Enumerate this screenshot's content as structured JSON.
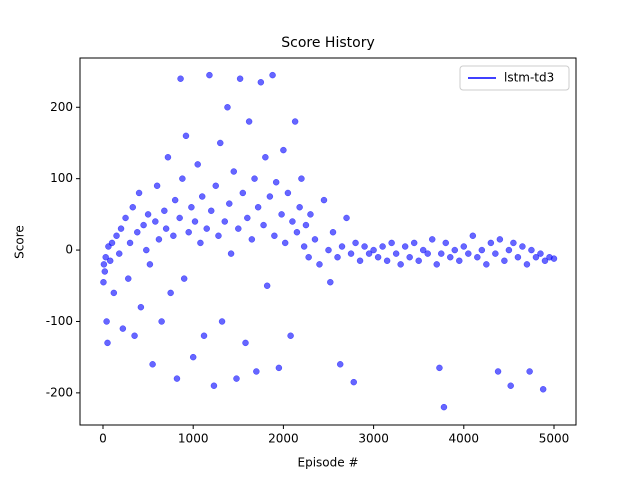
{
  "chart_data": {
    "type": "scatter",
    "title": "Score History",
    "x_label": "Episode #",
    "y_label": "Score",
    "xlim": [
      -255,
      5244
    ],
    "ylim": [
      -245,
      269
    ],
    "xticks": [
      0,
      1000,
      2000,
      3000,
      4000,
      5000
    ],
    "yticks": [
      -200,
      -100,
      0,
      100,
      200
    ],
    "legend": "upper right",
    "series": [
      {
        "name": "lstm-td3",
        "color": "#0000ff",
        "x": [
          5,
          10,
          20,
          30,
          40,
          50,
          60,
          80,
          100,
          120,
          150,
          180,
          200,
          220,
          250,
          280,
          300,
          330,
          350,
          380,
          400,
          420,
          450,
          480,
          500,
          520,
          550,
          580,
          600,
          620,
          650,
          680,
          700,
          720,
          750,
          780,
          800,
          820,
          850,
          860,
          880,
          900,
          920,
          950,
          980,
          1000,
          1020,
          1050,
          1080,
          1100,
          1120,
          1150,
          1180,
          1200,
          1230,
          1250,
          1280,
          1300,
          1320,
          1350,
          1380,
          1400,
          1420,
          1450,
          1480,
          1500,
          1520,
          1550,
          1580,
          1600,
          1620,
          1650,
          1680,
          1700,
          1720,
          1750,
          1780,
          1800,
          1820,
          1850,
          1880,
          1900,
          1920,
          1950,
          1980,
          2000,
          2020,
          2050,
          2080,
          2100,
          2130,
          2150,
          2180,
          2200,
          2230,
          2250,
          2280,
          2300,
          2350,
          2400,
          2450,
          2500,
          2520,
          2550,
          2600,
          2630,
          2650,
          2700,
          2750,
          2780,
          2800,
          2850,
          2900,
          2950,
          3000,
          3050,
          3100,
          3150,
          3200,
          3250,
          3300,
          3350,
          3400,
          3450,
          3500,
          3550,
          3600,
          3650,
          3700,
          3730,
          3750,
          3780,
          3800,
          3850,
          3900,
          3950,
          4000,
          4050,
          4100,
          4150,
          4200,
          4250,
          4300,
          4350,
          4380,
          4400,
          4450,
          4500,
          4520,
          4550,
          4600,
          4650,
          4700,
          4730,
          4750,
          4800,
          4850,
          4880,
          4900,
          4950,
          5000
        ],
        "values": [
          -45,
          -20,
          -30,
          -10,
          -100,
          -130,
          5,
          -15,
          10,
          -60,
          20,
          -5,
          30,
          -110,
          45,
          -40,
          10,
          60,
          -120,
          25,
          80,
          -80,
          35,
          0,
          50,
          -20,
          -160,
          40,
          90,
          15,
          -100,
          55,
          30,
          130,
          -60,
          20,
          70,
          -180,
          45,
          240,
          100,
          -40,
          160,
          25,
          60,
          -150,
          40,
          120,
          10,
          75,
          -120,
          30,
          245,
          55,
          -190,
          90,
          20,
          150,
          -100,
          40,
          200,
          65,
          -5,
          110,
          -180,
          30,
          240,
          80,
          -130,
          45,
          180,
          15,
          100,
          -170,
          60,
          235,
          35,
          130,
          -50,
          75,
          245,
          20,
          95,
          -165,
          50,
          140,
          10,
          80,
          -120,
          40,
          180,
          25,
          60,
          100,
          5,
          35,
          -10,
          50,
          15,
          -20,
          70,
          0,
          -45,
          25,
          -10,
          -160,
          5,
          45,
          -5,
          -185,
          10,
          -15,
          5,
          -5,
          0,
          -10,
          5,
          -15,
          10,
          -5,
          -20,
          5,
          -10,
          10,
          -15,
          0,
          -5,
          15,
          -20,
          -165,
          -5,
          -220,
          10,
          -10,
          0,
          -15,
          5,
          -5,
          20,
          -10,
          0,
          -20,
          10,
          -5,
          -170,
          15,
          -15,
          0,
          -190,
          10,
          -10,
          5,
          -20,
          -170,
          0,
          -10,
          -5,
          -195,
          -15,
          -10,
          -12
        ]
      }
    ]
  }
}
